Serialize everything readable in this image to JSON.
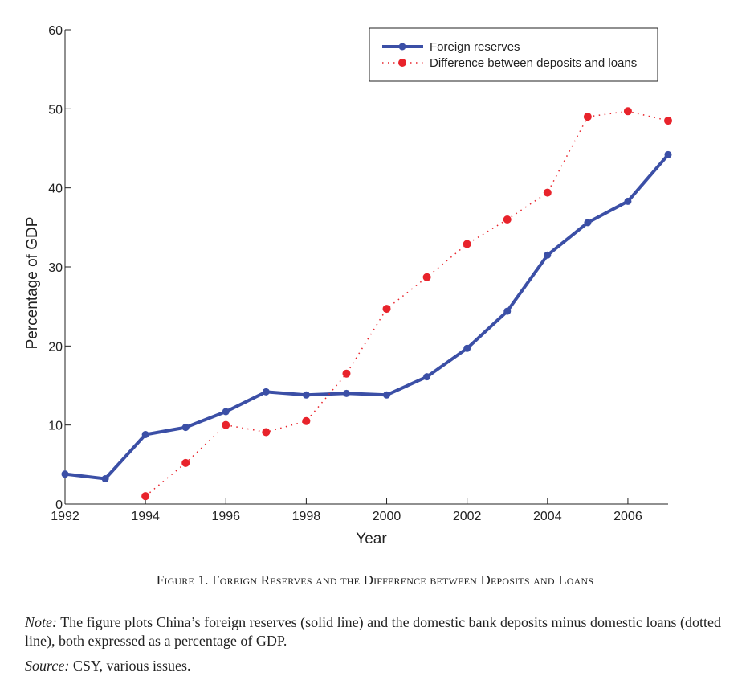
{
  "chart_data": {
    "type": "line",
    "xlabel": "Year",
    "ylabel": "Percentage of GDP",
    "xlim": [
      1992,
      2007
    ],
    "ylim": [
      0,
      60
    ],
    "xticks": [
      1992,
      1994,
      1996,
      1998,
      2000,
      2002,
      2004,
      2006
    ],
    "yticks": [
      0,
      10,
      20,
      30,
      40,
      50,
      60
    ],
    "grid": false,
    "legend_position": "top-right",
    "series": [
      {
        "name": "Foreign reserves",
        "style": "solid",
        "color": "#3b4fa6",
        "x": [
          1992,
          1993,
          1994,
          1995,
          1996,
          1997,
          1998,
          1999,
          2000,
          2001,
          2002,
          2003,
          2004,
          2005,
          2006,
          2007
        ],
        "y": [
          3.8,
          3.2,
          8.8,
          9.7,
          11.7,
          14.2,
          13.8,
          14.0,
          13.8,
          16.1,
          19.7,
          24.4,
          31.5,
          35.6,
          38.3,
          44.2
        ]
      },
      {
        "name": "Difference between deposits and loans",
        "style": "dotted",
        "color": "#e8232b",
        "x": [
          1994,
          1995,
          1996,
          1997,
          1998,
          1999,
          2000,
          2001,
          2002,
          2003,
          2004,
          2005,
          2006,
          2007
        ],
        "y": [
          1.0,
          5.2,
          10.0,
          9.1,
          10.5,
          16.5,
          24.7,
          28.7,
          32.9,
          36.0,
          39.4,
          49.0,
          49.7,
          48.5
        ]
      }
    ]
  },
  "caption": {
    "figure_label": "Figure 1.",
    "title": "Foreign Reserves and the Difference between Deposits and Loans"
  },
  "note": {
    "label": "Note:",
    "text": "The figure plots China’s foreign reserves (solid line) and the domestic bank deposits minus domestic loans (dotted line), both expressed as a percentage of GDP."
  },
  "source": {
    "label": "Source:",
    "text": "CSY, various issues."
  }
}
